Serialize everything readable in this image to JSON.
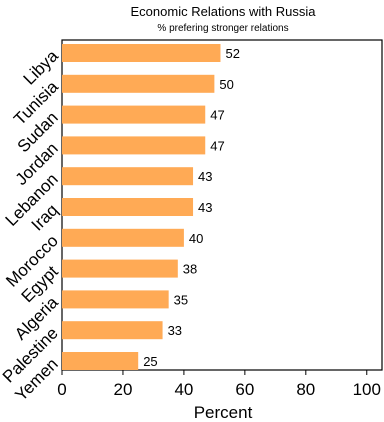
{
  "chart_data": {
    "type": "bar",
    "orientation": "horizontal",
    "title": "Economic Relations with Russia",
    "subtitle": "% prefering stronger relations",
    "xlabel": "Percent",
    "ylabel": "",
    "xlim": [
      0,
      105
    ],
    "xticks": [
      0,
      20,
      40,
      60,
      80,
      100
    ],
    "grid": false,
    "legend": "none",
    "bar_color": "#FFAA55",
    "categories": [
      "Libya",
      "Tunisia",
      "Sudan",
      "Jordan",
      "Lebanon",
      "Iraq",
      "Morocco",
      "Egypt",
      "Algeria",
      "Palestine",
      "Yemen"
    ],
    "values": [
      52,
      50,
      47,
      47,
      43,
      43,
      40,
      38,
      35,
      33,
      25
    ]
  }
}
